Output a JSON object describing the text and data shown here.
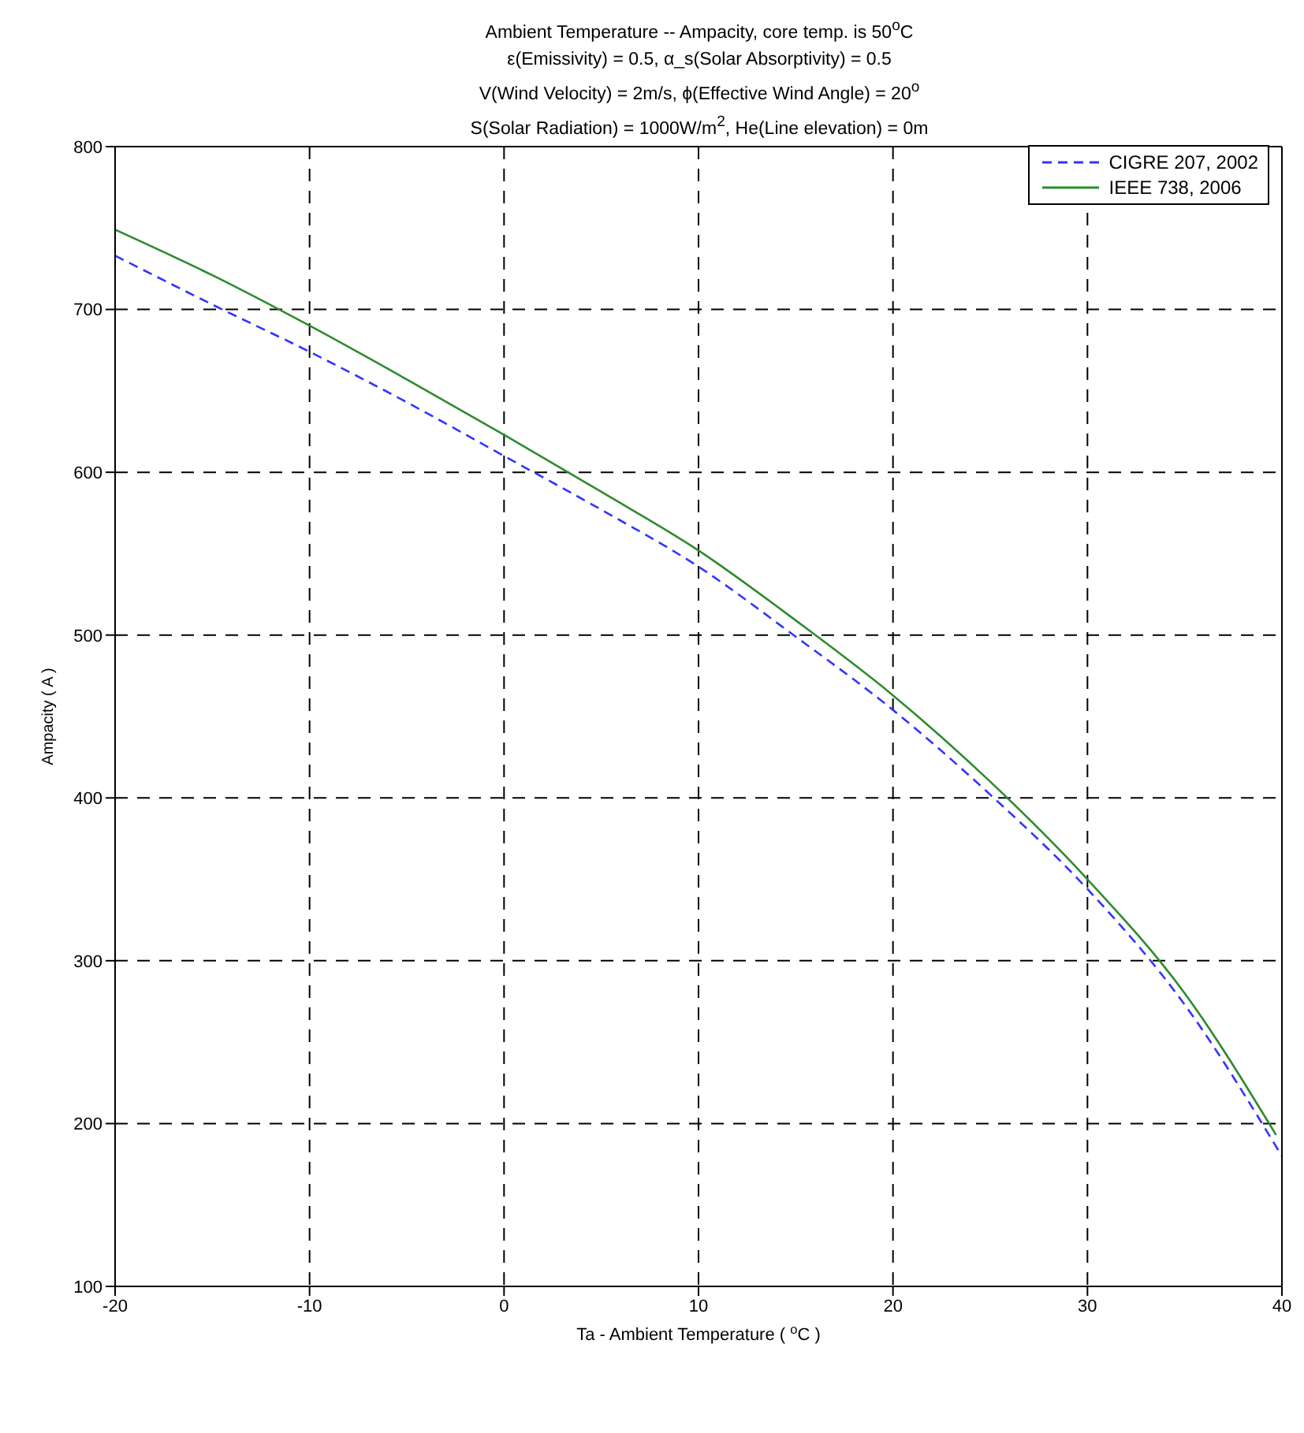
{
  "chart_data": {
    "type": "line",
    "title": "Ambient Temperature -- Ampacity, core temp. is 50$^{o}$C",
    "subtitle": "ε(Emissivity) = 0.5, α_s(Solar Absorptivity) = 0.5\nV(Wind Velocity) = 2m/s, ϕ(Effective Wind Angle) = 20$^{o}$\nS(Solar Radiation) = 1000W/m$^{2}$, He(Line elevation) = 0m",
    "xlabel": "Ta - Ambient Temperature ( $^{o}$C )",
    "ylabel": "Ampacity ( A )",
    "series": [
      {
        "name": "CIGRE 207, 2002",
        "color": "#3333ff",
        "line_style": "dashed",
        "x": [
          -20,
          -15,
          -10,
          -5,
          0,
          5,
          10,
          15,
          20,
          25,
          30,
          35,
          40
        ],
        "values": [
          733,
          703,
          674,
          643,
          610,
          577,
          542,
          499,
          454,
          402,
          344,
          273,
          180
        ]
      },
      {
        "name": "IEEE 738, 2006",
        "color": "#2e8b2e",
        "line_style": "solid",
        "x": [
          -20,
          -15,
          -10,
          -5,
          0,
          5,
          10,
          15,
          20,
          25,
          30,
          35,
          39.7
        ],
        "values": [
          749,
          721,
          690,
          657,
          623,
          588,
          552,
          509,
          463,
          410,
          350,
          280,
          193
        ]
      }
    ],
    "xlim": [
      -20,
      40
    ],
    "xticks": [
      -20,
      -10,
      0,
      10,
      20,
      30,
      40
    ],
    "ylim": [
      100,
      800
    ],
    "yticks": [
      100,
      200,
      300,
      400,
      500,
      600,
      700,
      800
    ],
    "grid": true,
    "legend": "top right",
    "marker": "none"
  }
}
